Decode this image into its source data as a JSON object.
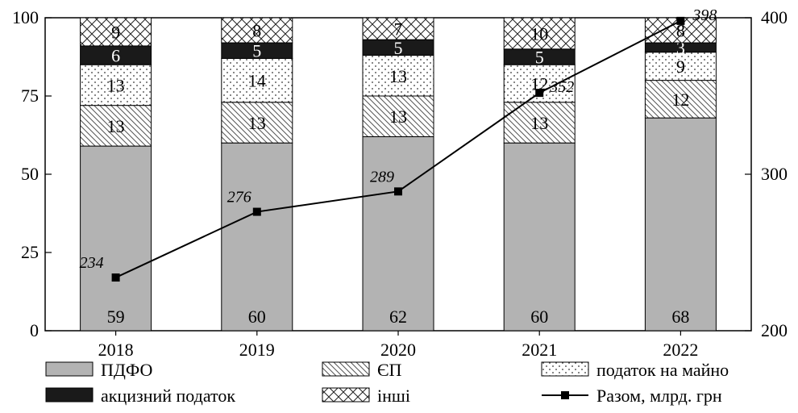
{
  "chart_data": {
    "type": "bar",
    "stacked": true,
    "categories": [
      "2018",
      "2019",
      "2020",
      "2021",
      "2022"
    ],
    "series": [
      {
        "name": "ПДФО",
        "values": [
          59,
          60,
          62,
          60,
          68
        ],
        "color": "#b3b3b3",
        "pattern": "solid-gray"
      },
      {
        "name": "ЄП",
        "values": [
          13,
          13,
          13,
          13,
          12
        ],
        "color": "#ffffff",
        "pattern": "diagonal-hatch"
      },
      {
        "name": "податок на майно",
        "values": [
          13,
          14,
          13,
          12,
          9
        ],
        "color": "#ffffff",
        "pattern": "dots"
      },
      {
        "name": "акцизний податок",
        "values": [
          6,
          5,
          5,
          5,
          3
        ],
        "color": "#1a1a1a",
        "pattern": "solid-black"
      },
      {
        "name": "інші",
        "values": [
          9,
          8,
          7,
          10,
          8
        ],
        "color": "#ffffff",
        "pattern": "crosshatch"
      }
    ],
    "line": {
      "name": "Разом, млрд. грн",
      "values": [
        234,
        276,
        289,
        352,
        398
      ],
      "labels": [
        "234",
        "276",
        "289",
        "352",
        "398"
      ],
      "axis": "right"
    },
    "y_left": {
      "min": 0,
      "max": 100,
      "ticks": [
        "0",
        "25",
        "50",
        "75",
        "100"
      ]
    },
    "y_right": {
      "min": 200,
      "max": 400,
      "ticks": [
        "200",
        "300",
        "400"
      ]
    },
    "legend": {
      "position": "bottom",
      "items": [
        "ПДФО",
        "ЄП",
        "податок на майно",
        "акцизний податок",
        "інші",
        "Разом, млрд. грн"
      ]
    }
  }
}
